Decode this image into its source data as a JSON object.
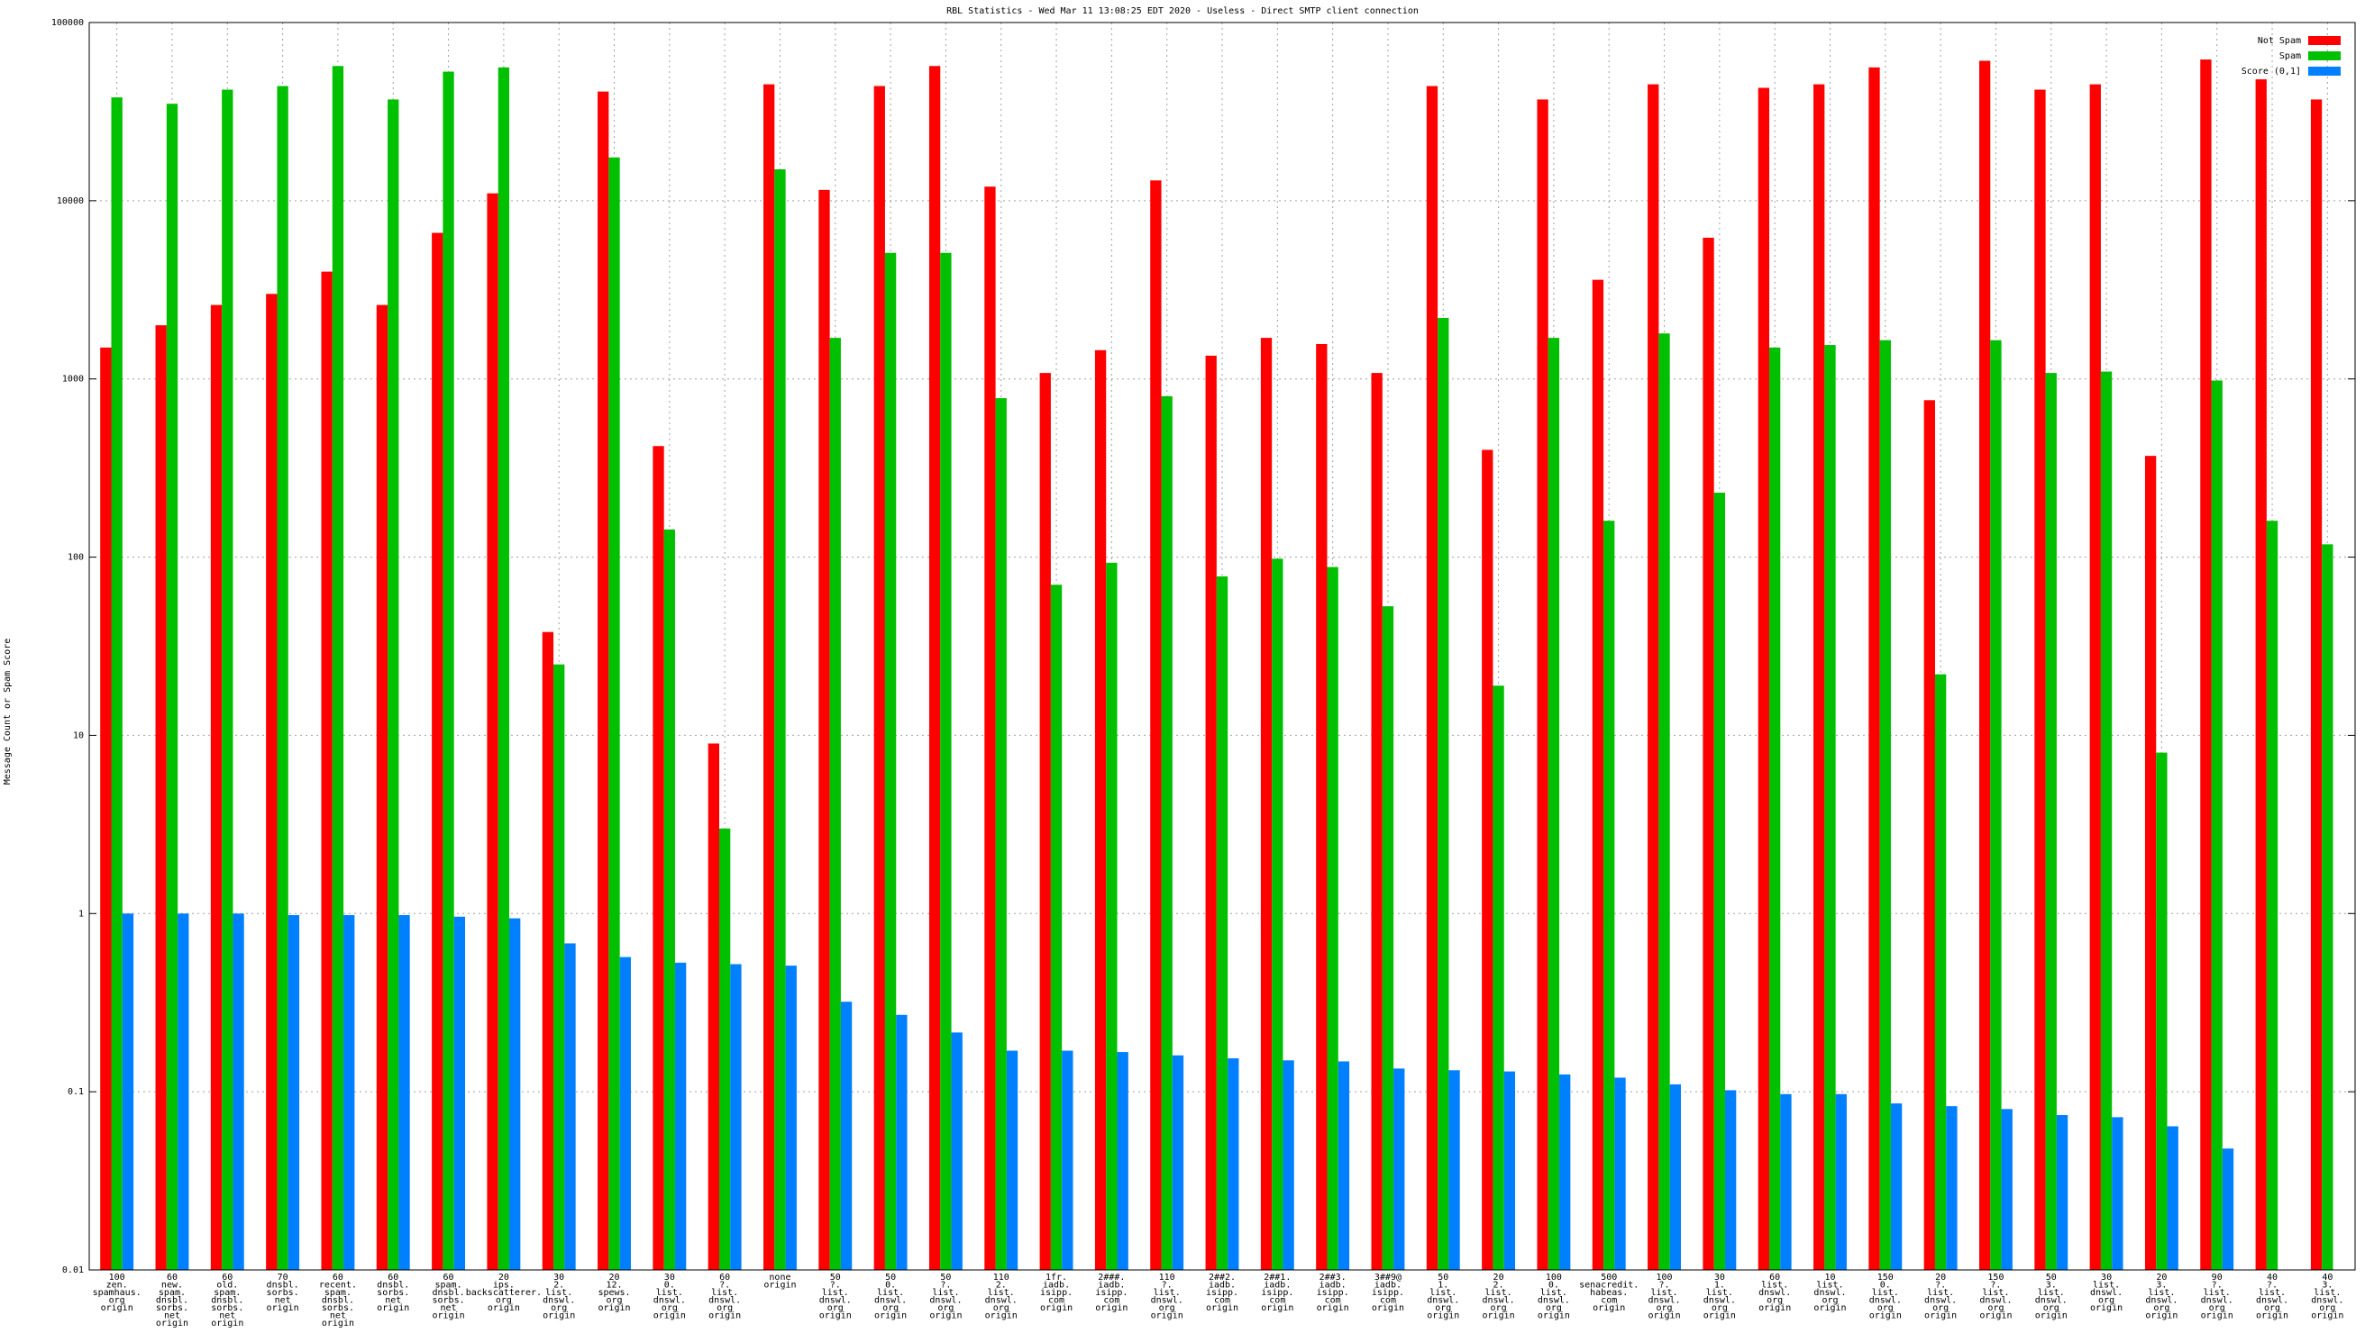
{
  "chart_data": {
    "type": "bar",
    "title": "RBL Statistics - Wed Mar 11 13:08:25 EDT 2020 - Useless - Direct SMTP client connection",
    "y_label": "Message Count or Spam Score",
    "yscale": "log",
    "grid": true,
    "legend": "upper right",
    "ylim": [
      0.01,
      100000
    ],
    "yticks": [
      0.01,
      0.1,
      1,
      10,
      100,
      1000,
      10000,
      100000
    ],
    "categories": [
      "100\nzen.\nspamhaus.\norg\norigin",
      "60\nnew.\nspam.\ndnsbl.\nsorbs.\nnet\norigin",
      "60\nold.\nspam.\ndnsbl.\nsorbs.\nnet\norigin",
      "70\ndnsbl.\nsorbs.\nnet\norigin",
      "60\nrecent.\nspam.\ndnsbl.\nsorbs.\nnet\norigin",
      "60\ndnsbl.\nsorbs.\nnet\norigin",
      "60\nspam.\ndnsbl.\nsorbs.\nnet\norigin",
      "20\nips.\nbackscatterer.\norg\norigin",
      "30\n2.\nlist.\ndnswl.\norg\norigin",
      "20\n12.\nspews.\norg\norigin",
      "30\n0.\nlist.\ndnswl.\norg\norigin",
      "60\n?.\nlist.\ndnswl.\norg\norigin",
      "none\norigin",
      "50\n?.\nlist.\ndnswl.\norg\norigin",
      "50\n0.\nlist.\ndnswl.\norg\norigin",
      "50\n?.\nlist.\ndnswl.\norg\norigin",
      "110\n2.\nlist.\ndnswl.\norg\norigin",
      "1fr.\niadb.\nisipp.\ncom\norigin",
      "2###.\niadb.\nisipp.\ncom\norigin",
      "110\n?.\nlist.\ndnswl.\norg\norigin",
      "2##2.\niadb.\nisipp.\ncom\norigin",
      "2##1.\niadb.\nisipp.\ncom\norigin",
      "2##3.\niadb.\nisipp.\ncom\norigin",
      "3##9@\niadb.\nisipp.\ncom\norigin",
      "50\n1.\nlist.\ndnswl.\norg\norigin",
      "20\n2.\nlist.\ndnswl.\norg\norigin",
      "100\n0.\nlist.\ndnswl.\norg\norigin",
      "500\nsenacredit.\nhabeas.\ncom\norigin",
      "100\n?.\nlist.\ndnswl.\norg\norigin",
      "30\n1.\nlist.\ndnswl.\norg\norigin",
      "60\nlist.\ndnswl.\norg\norigin",
      "10\nlist.\ndnswl.\norg\norigin",
      "150\n0.\nlist.\ndnswl.\norg\norigin",
      "20\n?.\nlist.\ndnswl.\norg\norigin",
      "150\n?.\nlist.\ndnswl.\norg\norigin",
      "50\n3.\nlist.\ndnswl.\norg\norigin",
      "30\nlist.\ndnswl.\norg\norigin",
      "20\n3.\nlist.\ndnswl.\norg\norigin",
      "90\n?.\nlist.\ndnswl.\norg\norigin",
      "40\n?.\nlist.\ndnswl.\norg\norigin",
      "40\n3.\nlist.\ndnswl.\norg\norigin"
    ],
    "series": [
      {
        "name": "Not Spam",
        "color": "#ff0000",
        "values": [
          1500,
          2000,
          2600,
          3000,
          4000,
          2600,
          6600,
          11000,
          38,
          41000,
          420,
          9,
          45000,
          11500,
          44000,
          57000,
          12000,
          1080,
          1450,
          13000,
          1350,
          1700,
          1570,
          1080,
          44000,
          400,
          37000,
          3600,
          45000,
          6200,
          43000,
          45000,
          56000,
          760,
          61000,
          42000,
          45000,
          370,
          62000,
          48000,
          37000
        ]
      },
      {
        "name": "Spam",
        "color": "#00c000",
        "values": [
          38000,
          35000,
          42000,
          44000,
          57000,
          37000,
          53000,
          56000,
          25,
          17500,
          143,
          3,
          15000,
          1700,
          5100,
          5100,
          780,
          70,
          93,
          800,
          78,
          98,
          88,
          53,
          2200,
          19,
          1700,
          160,
          1800,
          230,
          1500,
          1550,
          1650,
          22,
          1650,
          1080,
          1100,
          8,
          980,
          160,
          118
        ]
      },
      {
        "name": "Score (0,1]",
        "color": "#0080ff",
        "values": [
          1,
          1,
          1,
          0.98,
          0.98,
          0.98,
          0.96,
          0.94,
          0.68,
          0.57,
          0.53,
          0.52,
          0.51,
          0.32,
          0.27,
          0.215,
          0.17,
          0.17,
          0.167,
          0.16,
          0.154,
          0.15,
          0.148,
          0.135,
          0.132,
          0.13,
          0.125,
          0.12,
          0.11,
          0.102,
          0.097,
          0.097,
          0.086,
          0.083,
          0.08,
          0.074,
          0.072,
          0.064,
          0.048,
          null,
          null
        ]
      }
    ]
  }
}
